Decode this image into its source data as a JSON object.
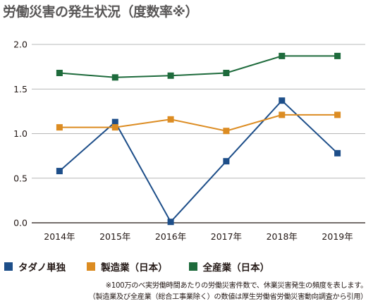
{
  "title": "労働災害の発生状況（度数率※）",
  "chart_data": {
    "type": "line",
    "x": [
      "2014年",
      "2015年",
      "2016年",
      "2017年",
      "2018年",
      "2019年"
    ],
    "ylim": [
      0,
      2.0
    ],
    "yticks": [
      "0.0",
      "0.5",
      "1.0",
      "1.5",
      "2.0"
    ],
    "ytick_values": [
      0,
      0.5,
      1.0,
      1.5,
      2.0
    ],
    "grid": true,
    "legend_position": "bottom",
    "series": [
      {
        "name": "タダノ単独",
        "color": "#1d4e89",
        "values": [
          0.58,
          1.13,
          0.01,
          0.69,
          1.37,
          0.78
        ]
      },
      {
        "name": "製造業（日本）",
        "color": "#dc8c22",
        "values": [
          1.07,
          1.07,
          1.16,
          1.03,
          1.21,
          1.21
        ]
      },
      {
        "name": "全産業（日本）",
        "color": "#1e6b3c",
        "values": [
          1.68,
          1.63,
          1.65,
          1.68,
          1.87,
          1.87
        ]
      }
    ]
  },
  "legend": [
    {
      "label": "タダノ単独",
      "color": "#1d4e89"
    },
    {
      "label": "製造業（日本）",
      "color": "#dc8c22"
    },
    {
      "label": "全産業（日本）",
      "color": "#1e6b3c"
    }
  ],
  "notes": [
    "※100万のべ実労働時間あたりの労働災害件数で、休業災害発生の頻度を表します。",
    "（製造業及び全産業（総合工事業除く）の数値は厚生労働省労働災害動向調査から引用）"
  ]
}
